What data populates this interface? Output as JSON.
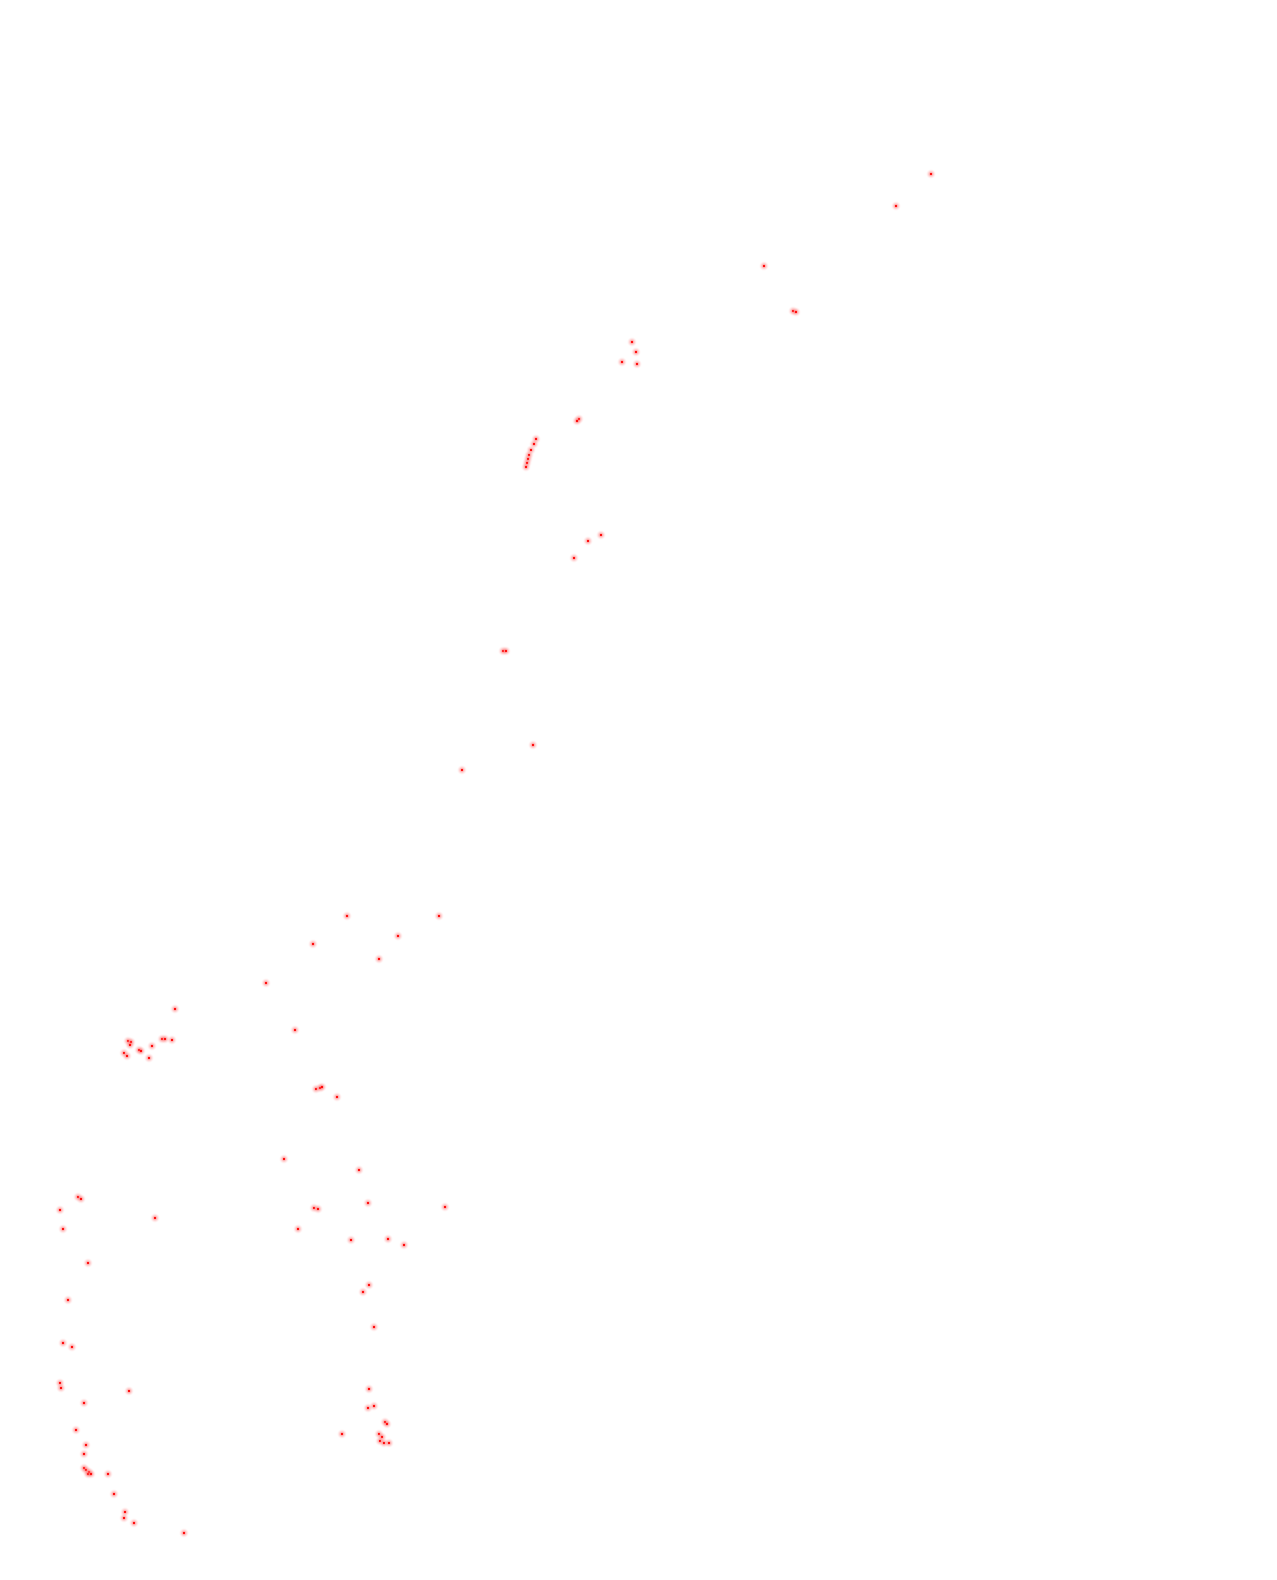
{
  "map": {
    "background": "#ffffff",
    "marker_color": "#ff0000",
    "marker_glow": "#ffb3b3",
    "marker_icon": "dot-marker",
    "markers_count": 132
  }
}
